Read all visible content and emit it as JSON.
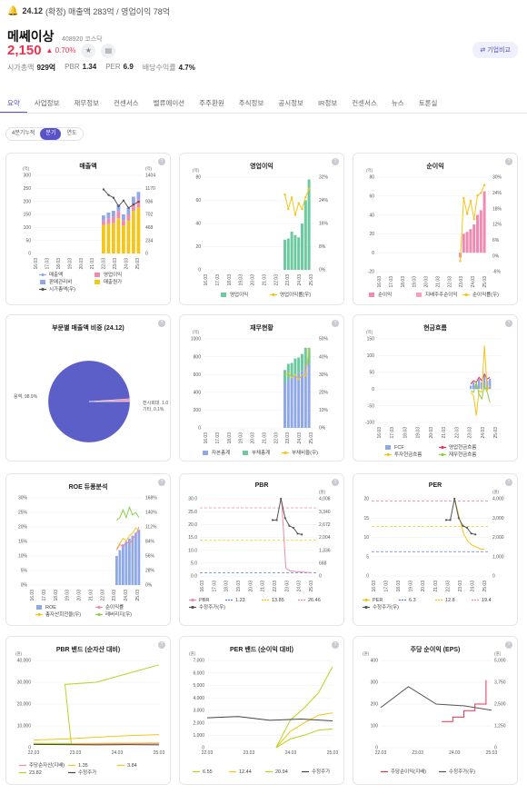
{
  "ticker_bar": {
    "quarter": "24.12",
    "text": "(확정) 매출액 283억 / 영업이익 78억"
  },
  "stock": {
    "name": "메쎄이상",
    "code": "408920 코스닥",
    "price": "2,150",
    "change": "▲ 0.70%"
  },
  "metrics": [
    {
      "label": "시가총액",
      "value": "929억"
    },
    {
      "label": "PBR",
      "value": "1.34"
    },
    {
      "label": "PER",
      "value": "6.9"
    },
    {
      "label": "배당수익률",
      "value": "4.7%"
    }
  ],
  "compare_button": "⇄ 기업비교",
  "tabs": [
    "요약",
    "사업정보",
    "재무정보",
    "컨센서스",
    "밸류에이션",
    "주주환원",
    "주식정보",
    "공시정보",
    "IR정보",
    "컨센서스",
    "뉴스",
    "토론실"
  ],
  "period_toggle": [
    "4분기누적",
    "분기",
    "연도"
  ],
  "colors": {
    "accent": "#5a52c8",
    "up": "#e8344e"
  },
  "chart_data": [
    {
      "type": "bar",
      "title": "매출액",
      "ylabel_left": "(억)",
      "ylabel_right": "(억)",
      "ylim": [
        0,
        300
      ],
      "ylim_right": [
        0,
        1404
      ],
      "yticks_left": [
        "300",
        "250",
        "200",
        "150",
        "100",
        "50",
        "0"
      ],
      "yticks_right": [
        "1404",
        "1170",
        "936",
        "702",
        "468",
        "234",
        "0"
      ],
      "xticks": [
        "16.03",
        "17.03",
        "18.03",
        "19.03",
        "20.03",
        "21.03",
        "22.03",
        "23.03",
        "24.03",
        "25.03"
      ],
      "x": [
        "23.03",
        "23.06",
        "23.09",
        "23.12",
        "24.03",
        "24.06",
        "24.09",
        "24.12"
      ],
      "series": [
        {
          "name": "매출액",
          "values": [
            170,
            190,
            200,
            230,
            180,
            210,
            260,
            283
          ]
        },
        {
          "name": "영업이익",
          "values": [
            40,
            55,
            60,
            70,
            50,
            60,
            70,
            78
          ]
        },
        {
          "name": "판매관리비",
          "values": [
            20,
            22,
            23,
            25,
            22,
            24,
            26,
            28
          ]
        },
        {
          "name": "매출원가",
          "values": [
            110,
            113,
            117,
            135,
            108,
            126,
            164,
            177
          ]
        },
        {
          "name": "시가총액(우)",
          "values": [
            1150,
            1050,
            1000,
            850,
            950,
            820,
            880,
            929
          ]
        }
      ]
    },
    {
      "type": "bar",
      "title": "영업이익",
      "ylabel_left": "(억)",
      "ylim": [
        0,
        80
      ],
      "ylim_right": [
        0,
        32
      ],
      "yticks_left": [
        "80",
        "60",
        "40",
        "20",
        "0"
      ],
      "yticks_right": [
        "32%",
        "24%",
        "16%",
        "8%",
        "0%"
      ],
      "xticks": [
        "16.03",
        "17.03",
        "18.03",
        "19.03",
        "20.03",
        "21.03",
        "22.03",
        "23.03",
        "24.03",
        "25.03"
      ],
      "x": [
        "23.03",
        "23.06",
        "23.09",
        "23.12",
        "24.03",
        "24.06",
        "24.09",
        "24.12"
      ],
      "series": [
        {
          "name": "영업이익",
          "values": [
            26,
            27,
            33,
            30,
            28,
            40,
            60,
            78
          ]
        },
        {
          "name": "영업이익률(우)",
          "values": [
            26,
            21,
            25,
            19,
            23,
            21,
            25,
            28
          ]
        }
      ]
    },
    {
      "type": "bar",
      "title": "순이익",
      "ylabel_left": "(억)",
      "ylim": [
        -20,
        80
      ],
      "ylim_right": [
        -6,
        30
      ],
      "yticks_left": [
        "80",
        "60",
        "40",
        "20",
        "0",
        "-20"
      ],
      "yticks_right": [
        "30%",
        "24%",
        "18%",
        "12%",
        "6%",
        "0%",
        "-6%"
      ],
      "xticks": [
        "16.03",
        "17.03",
        "18.03",
        "19.03",
        "20.03",
        "21.03",
        "22.03",
        "23.03",
        "24.03",
        "25.03"
      ],
      "x": [
        "23.03",
        "23.06",
        "23.09",
        "23.12",
        "24.03",
        "24.06",
        "24.09",
        "24.12"
      ],
      "series": [
        {
          "name": "순이익",
          "values": [
            -5,
            20,
            22,
            25,
            30,
            40,
            45,
            65
          ]
        },
        {
          "name": "지배주주순이익",
          "values": [
            -5,
            20,
            22,
            25,
            30,
            40,
            45,
            65
          ]
        },
        {
          "name": "순이익률(우)",
          "values": [
            -2,
            22,
            16,
            21,
            14,
            23,
            24,
            27
          ]
        }
      ]
    },
    {
      "type": "pie",
      "title": "부문별 매출액 비중 (24.12)",
      "labels": [
        "용역",
        "전시회대, 1.0",
        "기타, 0.1%"
      ],
      "label_text": [
        "용역, 98.9%",
        "전시회대. 1.0",
        "기타, 0.1%"
      ],
      "values": [
        98.9,
        1.0,
        0.1
      ]
    },
    {
      "type": "bar",
      "title": "재무현황",
      "ylabel_left": "(억)",
      "ylim": [
        0,
        1000
      ],
      "ylim_right": [
        0,
        50
      ],
      "yticks_left": [
        "1000",
        "800",
        "600",
        "400",
        "200",
        "0"
      ],
      "yticks_right": [
        "50%",
        "40%",
        "30%",
        "20%",
        "10%",
        "0%"
      ],
      "xticks": [
        "16.03",
        "17.03",
        "18.03",
        "19.03",
        "20.03",
        "21.03",
        "22.03",
        "23.03",
        "24.03",
        "25.03"
      ],
      "x": [
        "23.03",
        "23.06",
        "23.09",
        "23.12",
        "24.03",
        "24.06",
        "24.09",
        "24.12"
      ],
      "series": [
        {
          "name": "자본총계",
          "values": [
            500,
            550,
            570,
            600,
            620,
            640,
            700,
            720
          ]
        },
        {
          "name": "부채총계",
          "values": [
            150,
            170,
            160,
            180,
            170,
            190,
            200,
            180
          ]
        },
        {
          "name": "부채비율(우)",
          "values": [
            30,
            31,
            28,
            30,
            27,
            30,
            29,
            45
          ]
        }
      ]
    },
    {
      "type": "line",
      "title": "현금흐름",
      "ylabel_left": "(억)",
      "ylim": [
        -100,
        150
      ],
      "yticks_left": [
        "150",
        "100",
        "50",
        "0",
        "-50",
        "-100"
      ],
      "xticks": [
        "16.03",
        "17.03",
        "18.03",
        "19.03",
        "20.03",
        "21.03",
        "22.03",
        "23.03",
        "24.03",
        "25.03"
      ],
      "x": [
        "23.03",
        "23.06",
        "23.09",
        "23.12",
        "24.03",
        "24.06",
        "24.09",
        "24.12"
      ],
      "series": [
        {
          "name": "FCF",
          "values": [
            10,
            20,
            15,
            30,
            20,
            40,
            25,
            30
          ]
        },
        {
          "name": "영업현금흐름",
          "values": [
            15,
            25,
            20,
            35,
            25,
            45,
            30,
            35
          ]
        },
        {
          "name": "투자현금흐름",
          "values": [
            -10,
            -20,
            -80,
            -5,
            -10,
            130,
            -5,
            10
          ]
        },
        {
          "name": "재무현금흐름",
          "values": [
            -5,
            -10,
            20,
            -15,
            -30,
            10,
            -10,
            -40
          ]
        }
      ]
    },
    {
      "type": "bar",
      "title": "ROE 듀퐁분석",
      "ylim": [
        0,
        30
      ],
      "ylim_right": [
        0,
        168
      ],
      "yticks_left": [
        "30%",
        "25%",
        "20%",
        "15%",
        "10%",
        "5%",
        "0%"
      ],
      "yticks_right": [
        "168%",
        "140%",
        "112%",
        "84%",
        "56%",
        "28%",
        "0%"
      ],
      "xticks": [
        "16.03",
        "17.03",
        "18.03",
        "19.03",
        "20.03",
        "21.03",
        "22.03",
        "23.03",
        "24.03",
        "25.03"
      ],
      "x": [
        "23.03",
        "23.06",
        "23.09",
        "23.12",
        "24.03",
        "24.06",
        "24.09",
        "24.12"
      ],
      "series": [
        {
          "name": "ROE",
          "values": [
            10,
            12,
            14,
            15,
            16,
            17,
            18,
            19
          ]
        },
        {
          "name": "순이익률",
          "values": [
            12,
            14,
            13,
            15,
            14,
            16,
            17,
            20
          ]
        },
        {
          "name": "총자산회전율(우)",
          "values": [
            70,
            80,
            90,
            85,
            95,
            100,
            110,
            105
          ]
        },
        {
          "name": "레버리지(우)",
          "values": [
            125,
            130,
            145,
            130,
            150,
            135,
            140,
            130
          ]
        }
      ]
    },
    {
      "type": "line",
      "title": "PBR",
      "ylabel_right": "(원)",
      "ylim": [
        0,
        30
      ],
      "ylim_right": [
        0,
        4008
      ],
      "yticks_left": [
        "30.0",
        "25.0",
        "20.0",
        "15.0",
        "10.0",
        "5.0",
        "0.0"
      ],
      "yticks_right": [
        "4,008",
        "3,340",
        "2,672",
        "2,004",
        "1,336",
        "668",
        "0"
      ],
      "xticks": [
        "16.03",
        "17.03",
        "18.03",
        "19.03",
        "20.03",
        "21.03",
        "22.03",
        "23.03",
        "24.03",
        "25.03"
      ],
      "series": [
        {
          "name": "PBR",
          "values": [
            29,
            3,
            2,
            1.8,
            1.6,
            1.5,
            1.4,
            1.34
          ]
        },
        {
          "name": "1.23",
          "values": [
            1.23
          ]
        },
        {
          "name": "13.85",
          "values": [
            13.85
          ]
        },
        {
          "name": "26.46",
          "values": [
            26.46
          ]
        },
        {
          "name": "수정주가(우)",
          "values": [
            2900,
            2900,
            4008,
            3000,
            2600,
            2500,
            2200,
            2150
          ]
        }
      ]
    },
    {
      "type": "line",
      "title": "PER",
      "ylabel_right": "(원)",
      "ylim": [
        0,
        20
      ],
      "ylim_right": [
        0,
        4000
      ],
      "yticks_left": [
        "20",
        "15",
        "10",
        "5",
        "0"
      ],
      "yticks_right": [
        "4,000",
        "3,000",
        "2,000",
        "1,000",
        "0"
      ],
      "xticks": [
        "16.03",
        "17.03",
        "18.03",
        "19.03",
        "20.03",
        "21.03",
        "22.03",
        "23.03",
        "24.03",
        "25.03"
      ],
      "series": [
        {
          "name": "PER",
          "values": [
            19.4,
            15,
            11,
            9,
            8,
            7.5,
            7,
            6.9
          ]
        },
        {
          "name": "6.3",
          "values": [
            6.3
          ]
        },
        {
          "name": "12.8",
          "values": [
            12.8
          ]
        },
        {
          "name": "19.4",
          "values": [
            19.4
          ]
        },
        {
          "name": "수정주가(우)",
          "values": [
            2900,
            2900,
            4000,
            3000,
            2600,
            2500,
            2200,
            2150
          ]
        }
      ]
    },
    {
      "type": "line",
      "title": "PBR 밴드 (순자산 대비)",
      "ylabel_left": "(원)",
      "ylim": [
        0,
        40000
      ],
      "yticks_left": [
        "40,000",
        "30,000",
        "20,000",
        "10,000",
        "0"
      ],
      "xticks": [
        "22.03",
        "23.03",
        "24.03",
        "25.03"
      ],
      "series": [
        {
          "name": "주당순자산(지배)",
          "values": [
            1500,
            1600,
            1700,
            1750,
            1800
          ]
        },
        {
          "name": "1.35",
          "values": [
            1800,
            1900,
            2000,
            2100,
            2200
          ]
        },
        {
          "name": "3.84",
          "values": [
            3500,
            4000,
            4800,
            5500,
            6000
          ]
        },
        {
          "name": "23.82",
          "values": [
            2000,
            29000,
            30000,
            34000,
            38000
          ]
        },
        {
          "name": "수정주가",
          "values": [
            1500,
            1400,
            1300,
            1400,
            1300
          ]
        }
      ]
    },
    {
      "type": "line",
      "title": "PER 밴드 (순이익 대비)",
      "ylabel_left": "(원)",
      "ylim": [
        0,
        7000
      ],
      "yticks_left": [
        "7,000",
        "6,000",
        "5,000",
        "4,000",
        "3,000",
        "2,000",
        "1,000",
        "0"
      ],
      "xticks": [
        "22.03",
        "23.03",
        "24.03",
        "25.03"
      ],
      "series": [
        {
          "name": "6.55",
          "values": [
            0,
            700,
            1000,
            1400,
            1500
          ]
        },
        {
          "name": "12.44",
          "values": [
            0,
            1300,
            2000,
            2600,
            2800
          ]
        },
        {
          "name": "20.94",
          "values": [
            0,
            2200,
            3200,
            4400,
            6500
          ]
        },
        {
          "name": "수정주가",
          "values": [
            2400,
            2500,
            2200,
            2300,
            2150
          ]
        }
      ]
    },
    {
      "type": "line",
      "title": "주당 순이익 (EPS)",
      "ylabel_left": "(원)",
      "ylabel_right": "(원)",
      "ylim": [
        0,
        400
      ],
      "ylim_right": [
        0,
        5000
      ],
      "yticks_left": [
        "400",
        "300",
        "200",
        "100",
        "0"
      ],
      "yticks_right": [
        "5,000",
        "3,750",
        "2,500",
        "1,250",
        "0"
      ],
      "xticks": [
        "22.03",
        "23.03",
        "24.03",
        "25.03"
      ],
      "series": [
        {
          "name": "주당순이익(지배)",
          "values": [
            120,
            140,
            170,
            200,
            310
          ]
        },
        {
          "name": "수정주가(우)",
          "values": [
            2300,
            3500,
            2500,
            2400,
            2150
          ]
        }
      ]
    }
  ]
}
